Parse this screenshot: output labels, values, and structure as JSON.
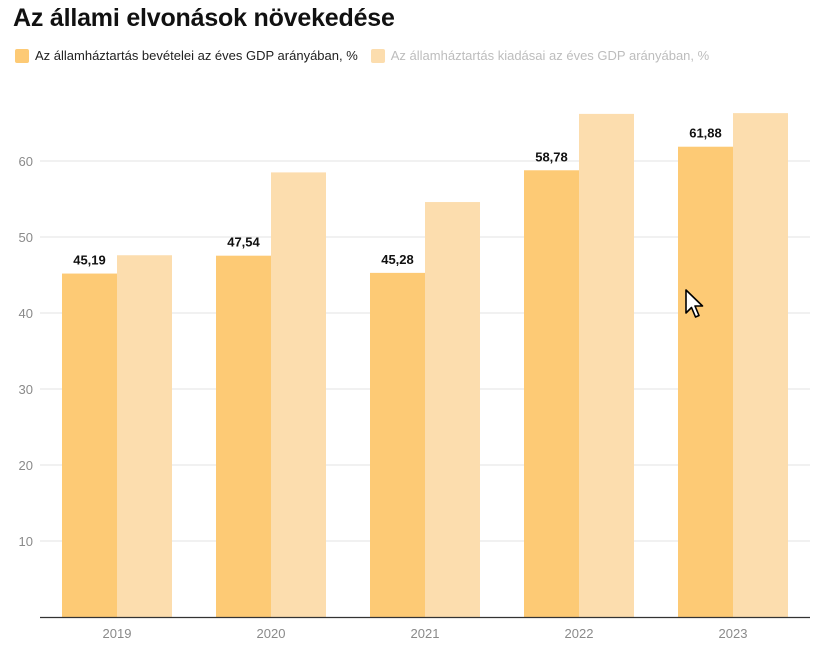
{
  "title": "Az állami elvonások növekedése",
  "legend": {
    "items": [
      {
        "label": "Az államháztartás bevételei az éves GDP arányában, %",
        "color": "#fdca75"
      },
      {
        "label": "Az államháztartás kiadásai az éves GDP arányában, %",
        "color": "#fcddae"
      }
    ]
  },
  "chart_data": {
    "type": "bar",
    "title": "Az állami elvonások növekedése",
    "xlabel": "",
    "ylabel": "",
    "categories": [
      "2019",
      "2020",
      "2021",
      "2022",
      "2023"
    ],
    "series": [
      {
        "name": "Az államháztartás bevételei az éves GDP arányában, %",
        "values": [
          45.19,
          47.54,
          45.28,
          58.78,
          61.88
        ],
        "labels": [
          "45,19",
          "47,54",
          "45,28",
          "58,78",
          "61,88"
        ],
        "color": "#fdca75"
      },
      {
        "name": "Az államháztartás kiadásai az éves GDP arányában, %",
        "values": [
          47.6,
          58.5,
          54.6,
          66.2,
          66.3
        ],
        "color": "#fcddae"
      }
    ],
    "yticks": [
      10,
      20,
      30,
      40,
      50,
      60
    ],
    "ylim": [
      0,
      70
    ],
    "grid": true,
    "legend_position": "top-left"
  }
}
